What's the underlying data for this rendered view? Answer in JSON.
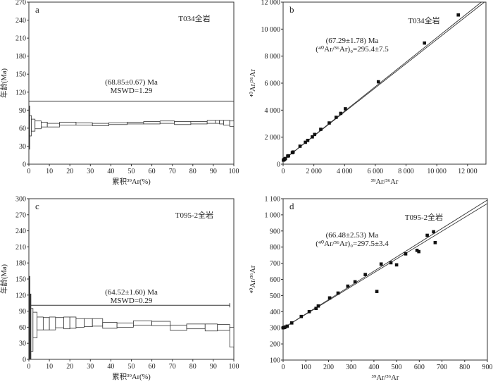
{
  "chart_data": [
    {
      "panel": "a",
      "type": "step",
      "sample": "T034全岩",
      "annotation": [
        "(68.85±0.67) Ma",
        "MSWD=1.29"
      ],
      "xlabel": "累积³⁹Ar(%)",
      "ylabel": "年龄(Ma)",
      "xlim": [
        0,
        100
      ],
      "ylim": [
        0,
        270
      ],
      "xticks": [
        0,
        10,
        20,
        30,
        40,
        50,
        60,
        70,
        80,
        90,
        100
      ],
      "yticks": [
        0,
        30,
        60,
        90,
        120,
        150,
        180,
        210,
        240,
        270
      ],
      "plateau": {
        "age": 105,
        "x": [
          0,
          100
        ]
      },
      "steps": [
        [
          0,
          0.4,
          25,
          97
        ],
        [
          0.4,
          1.2,
          47,
          81
        ],
        [
          1.2,
          3,
          55,
          75
        ],
        [
          3,
          6,
          59,
          72
        ],
        [
          6,
          9,
          62,
          70
        ],
        [
          9,
          15,
          62,
          68
        ],
        [
          15,
          23,
          65,
          70
        ],
        [
          23,
          31,
          65,
          69
        ],
        [
          31,
          39,
          64,
          68
        ],
        [
          39,
          48,
          66,
          69
        ],
        [
          48,
          56,
          67,
          70
        ],
        [
          56,
          64,
          67,
          71
        ],
        [
          64,
          71,
          68,
          72
        ],
        [
          71,
          79,
          66,
          71
        ],
        [
          79,
          87,
          67,
          71
        ],
        [
          87,
          91,
          68,
          73
        ],
        [
          91,
          93,
          68,
          73
        ],
        [
          93,
          95,
          67,
          73
        ],
        [
          95,
          98,
          65,
          73
        ],
        [
          98,
          100,
          63,
          72
        ]
      ]
    },
    {
      "panel": "b",
      "type": "scatter",
      "sample": "T034全岩",
      "annotation": [
        "(67.29±1.78) Ma",
        "(⁴⁰Ar/³⁶Ar)₀=295.4±7.5"
      ],
      "xlabel": "³⁹Ar/³⁶Ar",
      "ylabel": "⁴⁰Ar/³⁶Ar",
      "xlim": [
        0,
        13200
      ],
      "ylim": [
        0,
        12000
      ],
      "xticks": [
        0,
        2000,
        4000,
        6000,
        8000,
        10000,
        12000
      ],
      "xticklabels": [
        "0",
        "2 000",
        "4 000",
        "6 000",
        "8 000",
        "10 000",
        "12 000"
      ],
      "yticks": [
        0,
        2000,
        4000,
        6000,
        8000,
        10000,
        12000
      ],
      "yticklabels": [
        "0",
        "2 000",
        "4 000",
        "6 000",
        "8 000",
        "10 000",
        "12 000"
      ],
      "lines": [
        [
          0,
          295.4,
          12900,
          12000
        ],
        [
          0,
          295.4,
          13100,
          12000
        ]
      ],
      "points": [
        [
          20,
          300
        ],
        [
          60,
          330
        ],
        [
          100,
          380
        ],
        [
          150,
          420
        ],
        [
          300,
          600
        ],
        [
          350,
          620
        ],
        [
          600,
          850
        ],
        [
          650,
          900
        ],
        [
          1100,
          1330
        ],
        [
          1450,
          1620
        ],
        [
          1600,
          1760
        ],
        [
          1900,
          2020
        ],
        [
          2050,
          2200
        ],
        [
          2450,
          2580
        ],
        [
          3000,
          3050
        ],
        [
          3450,
          3470
        ],
        [
          3750,
          3760
        ],
        [
          4050,
          4100
        ],
        [
          6200,
          6100
        ],
        [
          9200,
          8970
        ],
        [
          11400,
          11050
        ]
      ]
    },
    {
      "panel": "c",
      "type": "step",
      "sample": "T095-2全岩",
      "annotation": [
        "(64.52±1.60) Ma",
        "MSWD=0.29"
      ],
      "xlabel": "累积³⁹Ar(%)",
      "ylabel": "年龄(Ma)",
      "xlim": [
        0,
        100
      ],
      "ylim": [
        0,
        300
      ],
      "xticks": [
        0,
        10,
        20,
        30,
        40,
        50,
        60,
        70,
        80,
        90,
        100
      ],
      "yticks": [
        0,
        30,
        60,
        90,
        120,
        150,
        180,
        210,
        240,
        270,
        300
      ],
      "plateau": {
        "age": 101,
        "x": [
          0,
          98
        ]
      },
      "steps": [
        [
          0,
          0.5,
          0,
          155
        ],
        [
          0.5,
          1,
          0,
          122
        ],
        [
          1,
          2,
          15,
          95
        ],
        [
          2,
          4,
          40,
          88
        ],
        [
          4,
          7,
          55,
          79
        ],
        [
          7,
          10,
          55,
          78
        ],
        [
          10,
          13,
          55,
          79
        ],
        [
          13,
          17,
          59,
          78
        ],
        [
          17,
          20,
          57,
          79
        ],
        [
          20,
          23,
          58,
          79
        ],
        [
          23,
          27,
          60,
          76
        ],
        [
          27,
          31,
          61,
          76
        ],
        [
          31,
          36,
          62,
          76
        ],
        [
          36,
          43,
          58,
          69
        ],
        [
          43,
          51,
          60,
          68
        ],
        [
          51,
          60,
          64,
          72
        ],
        [
          60,
          69,
          63,
          71
        ],
        [
          69,
          77,
          54,
          64
        ],
        [
          77,
          86,
          57,
          66
        ],
        [
          86,
          92,
          53,
          66
        ],
        [
          92,
          98,
          54,
          65
        ],
        [
          98,
          100,
          23,
          60
        ]
      ]
    },
    {
      "panel": "d",
      "type": "scatter",
      "sample": "T095-2全岩",
      "annotation": [
        "(66.48±2.53) Ma",
        "(⁴⁰Ar/³⁶Ar)₀=297.5±3.4"
      ],
      "xlabel": "³⁹Ar/³⁶Ar",
      "ylabel": "⁴⁰Ar/³⁶Ar",
      "xlim": [
        0,
        900
      ],
      "ylim": [
        100,
        1100
      ],
      "xticks": [
        0,
        100,
        200,
        300,
        400,
        500,
        600,
        700,
        800,
        900
      ],
      "yticks": [
        100,
        200,
        300,
        400,
        500,
        600,
        700,
        800,
        900,
        1000,
        1100
      ],
      "yticklabels": [
        "100",
        "200",
        "300",
        "400",
        "500",
        "600",
        "700",
        "800",
        "900",
        "1 000",
        "1 100"
      ],
      "lines": [
        [
          0,
          297.5,
          900,
          1092
        ],
        [
          0,
          297.5,
          900,
          1070
        ]
      ],
      "points": [
        [
          0,
          300
        ],
        [
          5,
          302
        ],
        [
          10,
          305
        ],
        [
          18,
          310
        ],
        [
          38,
          330
        ],
        [
          80,
          370
        ],
        [
          115,
          400
        ],
        [
          145,
          420
        ],
        [
          155,
          435
        ],
        [
          205,
          485
        ],
        [
          242,
          515
        ],
        [
          285,
          558
        ],
        [
          317,
          585
        ],
        [
          362,
          630
        ],
        [
          413,
          525
        ],
        [
          432,
          695
        ],
        [
          475,
          703
        ],
        [
          500,
          690
        ],
        [
          540,
          758
        ],
        [
          590,
          780
        ],
        [
          598,
          772
        ],
        [
          635,
          873
        ],
        [
          663,
          895
        ],
        [
          670,
          828
        ]
      ]
    }
  ]
}
